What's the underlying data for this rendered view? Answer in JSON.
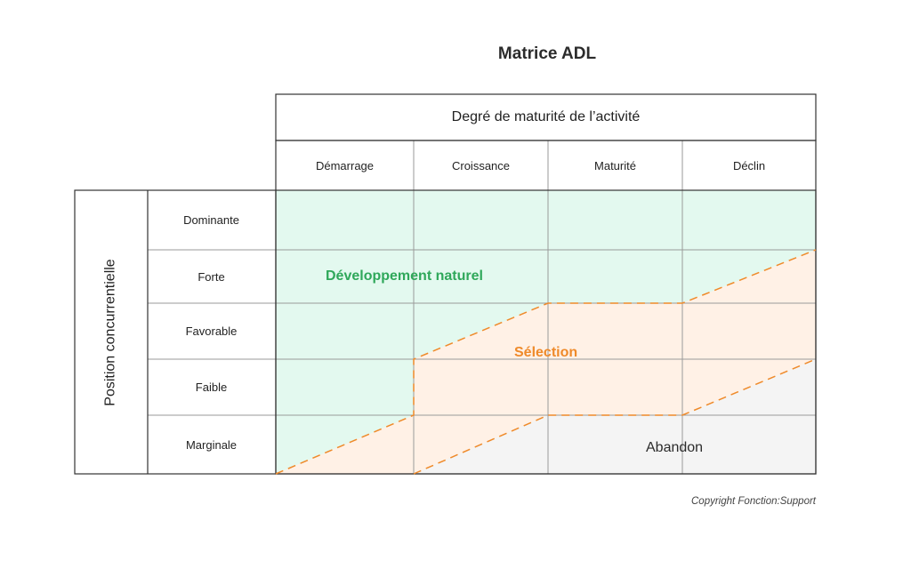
{
  "title": "Matrice ADL",
  "column_group_label": "Degré de maturité de l’activité",
  "columns": [
    "Démarrage",
    "Croissance",
    "Maturité",
    "Déclin"
  ],
  "row_group_label": "Position concurrentielle",
  "rows": [
    "Dominante",
    "Forte",
    "Favorable",
    "Faible",
    "Marginale"
  ],
  "zones": {
    "development": "Développement naturel",
    "selection": "Sélection",
    "abandon": "Abandon"
  },
  "colors": {
    "development_fill": "#e3f9ef",
    "selection_fill": "#fff1e6",
    "abandon_fill": "#f4f4f4",
    "dashed_line": "#ef8a2a",
    "grid": "#9a9a9a"
  },
  "copyright": "Copyright Fonction:Support"
}
